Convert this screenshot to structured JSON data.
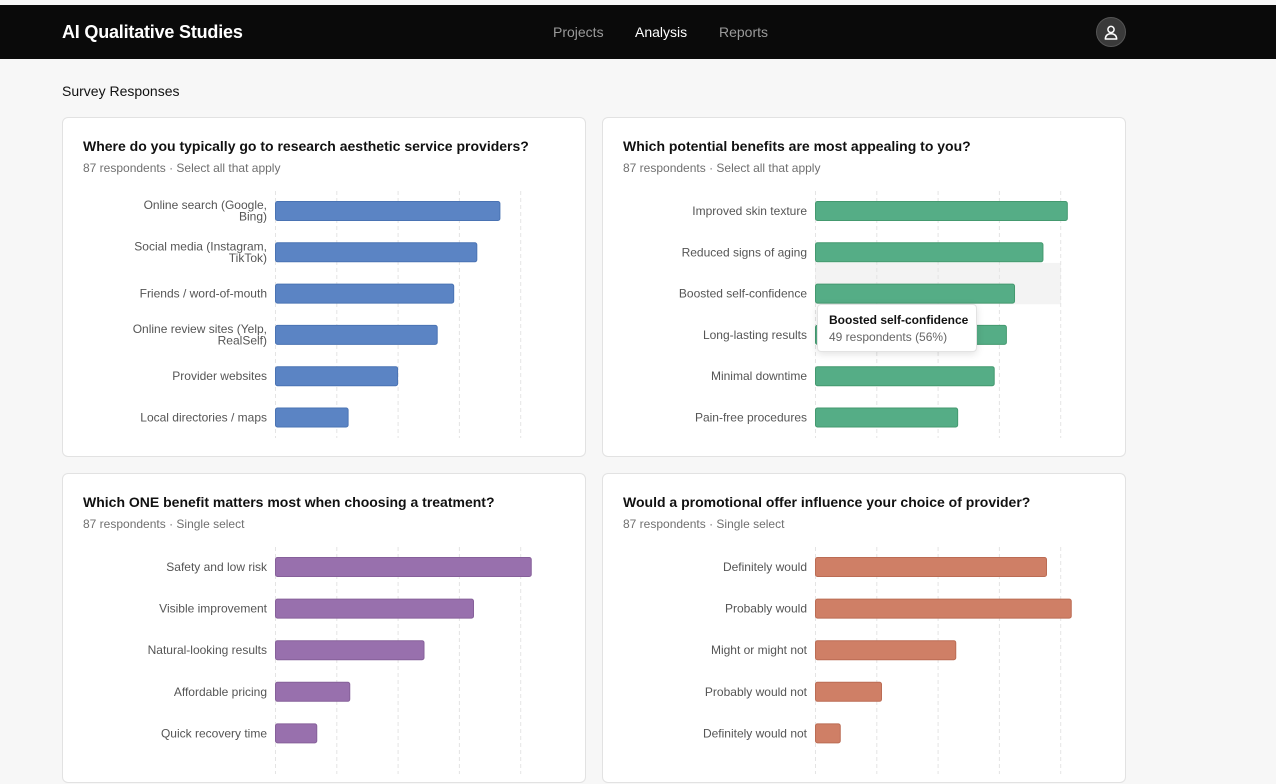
{
  "app": {
    "title": "AI Qualitative Studies"
  },
  "nav": [
    {
      "label": "Projects",
      "active": false
    },
    {
      "label": "Analysis",
      "active": true
    },
    {
      "label": "Reports",
      "active": false
    }
  ],
  "user": {
    "icon": "user-icon"
  },
  "section": {
    "title": "Survey Responses"
  },
  "charts": [
    {
      "title": "Where do you typically go to research aesthetic service providers?",
      "subtitle": "87 respondents · Select all that apply",
      "color": "#5b84c4",
      "border": "#4a73b3"
    },
    {
      "title": "Which potential benefits are most appealing to you?",
      "subtitle": "87 respondents · Select all that apply",
      "color": "#55ad86",
      "border": "#44996f"
    },
    {
      "title": "Which ONE benefit matters most when choosing a treatment?",
      "subtitle": "87 respondents · Single select",
      "color": "#9870ad",
      "border": "#86609a"
    },
    {
      "title": "Would a promotional offer influence your choice of provider?",
      "subtitle": "87 respondents · Single select",
      "color": "#cf7f66",
      "border": "#bb6c54"
    }
  ],
  "tooltip": {
    "title": "Boosted self-confidence",
    "value": "49 respondents (56%)"
  },
  "chart_data": [
    {
      "type": "bar",
      "orientation": "horizontal",
      "categories": [
        [
          "Online search (Google,",
          "Bing)"
        ],
        [
          "Social media (Instagram,",
          "TikTok)"
        ],
        [
          "Friends / word-of-mouth"
        ],
        [
          "Online review sites (Yelp,",
          "RealSelf)"
        ],
        [
          "Provider websites"
        ],
        [
          "Local directories / maps"
        ]
      ],
      "values": [
        68,
        61,
        54,
        49,
        37,
        22
      ],
      "xlim": [
        0,
        80
      ],
      "grid": true
    },
    {
      "type": "bar",
      "orientation": "horizontal",
      "categories": [
        [
          "Improved skin texture"
        ],
        [
          "Reduced signs of aging"
        ],
        [
          "Boosted self-confidence"
        ],
        [
          "Long-lasting results"
        ],
        [
          "Minimal downtime"
        ],
        [
          "Pain-free procedures"
        ]
      ],
      "values": [
        62,
        56,
        49,
        47,
        44,
        35
      ],
      "xlim": [
        0,
        65
      ],
      "grid": true,
      "highlight_index": 2
    },
    {
      "type": "bar",
      "orientation": "horizontal",
      "categories": [
        [
          "Safety and low risk"
        ],
        [
          "Visible improvement"
        ],
        [
          "Natural-looking results"
        ],
        [
          "Affordable pricing"
        ],
        [
          "Quick recovery time"
        ]
      ],
      "values": [
        31,
        24,
        18,
        9,
        5
      ],
      "xlim": [
        0,
        32
      ],
      "grid": true
    },
    {
      "type": "bar",
      "orientation": "horizontal",
      "categories": [
        [
          "Definitely would"
        ],
        [
          "Probably would"
        ],
        [
          "Might or might not"
        ],
        [
          "Probably would not"
        ],
        [
          "Definitely would not"
        ]
      ],
      "values": [
        28,
        31,
        17,
        8,
        3
      ],
      "xlim": [
        0,
        32
      ],
      "grid": true
    }
  ]
}
